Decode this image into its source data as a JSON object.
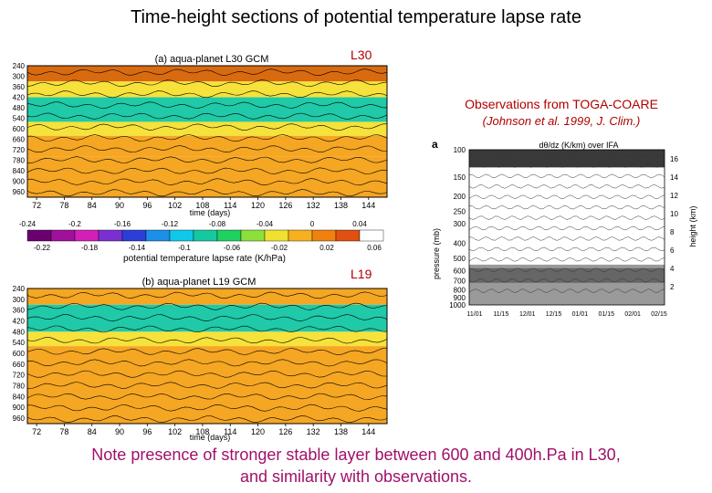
{
  "page": {
    "title": "Time-height sections of potential temperature lapse rate",
    "label_l30": "L30",
    "label_l19": "L19",
    "obs_title": "Observations from TOGA-COARE",
    "obs_subtitle": "(Johnson et al. 1999, J. Clim.)",
    "note_line1": "Note presence of stronger stable layer between 600 and 400h.Pa in L30,",
    "note_line2": "and similarity with observations."
  },
  "colors": {
    "deep_stable": "#d96a10",
    "stable": "#f5a623",
    "moderate": "#f6e23a",
    "weak": "#fff36a",
    "near_neutral": "#20c9a8",
    "neutral_dark": "#16a0a0"
  },
  "chart_data": [
    {
      "type": "heatmap",
      "title": "(a) aqua-planet L30 GCM",
      "xlabel": "time (days)",
      "x_ticks": [
        72,
        78,
        84,
        90,
        96,
        102,
        108,
        114,
        120,
        126,
        132,
        138,
        144
      ],
      "xlim": [
        70,
        148
      ],
      "y_ticks": [
        240,
        300,
        360,
        420,
        480,
        540,
        600,
        660,
        720,
        780,
        840,
        900,
        960
      ],
      "ylim": [
        240,
        990
      ],
      "bands": [
        {
          "from": 240,
          "to": 330,
          "value": -0.1
        },
        {
          "from": 330,
          "to": 420,
          "value": -0.04
        },
        {
          "from": 420,
          "to": 560,
          "value": -0.01
        },
        {
          "from": 560,
          "to": 640,
          "value": -0.04
        },
        {
          "from": 640,
          "to": 760,
          "value": -0.05
        },
        {
          "from": 760,
          "to": 990,
          "value": -0.06
        }
      ]
    },
    {
      "type": "colorbar",
      "title": "potential temperature lapse rate (K/hPa)",
      "upper_ticks": [
        "-0.24",
        "-0.2",
        "-0.16",
        "-0.12",
        "-0.08",
        "-0.04",
        "0",
        "0.04"
      ],
      "lower_ticks": [
        "-0.22",
        "-0.18",
        "-0.14",
        "-0.1",
        "-0.06",
        "-0.02",
        "0.02",
        "0.06"
      ],
      "colors": [
        "#6a0070",
        "#a0109a",
        "#d31fb8",
        "#7a2fd0",
        "#2b3fd8",
        "#1c8fe8",
        "#10c8e8",
        "#16c8a0",
        "#20d060",
        "#8be03a",
        "#f0e030",
        "#f6b020",
        "#f08010",
        "#e05010",
        "#ffffff"
      ]
    },
    {
      "type": "heatmap",
      "title": "(b) aqua-planet L19 GCM",
      "xlabel": "time (days)",
      "x_ticks": [
        72,
        78,
        84,
        90,
        96,
        102,
        108,
        114,
        120,
        126,
        132,
        138,
        144
      ],
      "xlim": [
        70,
        148
      ],
      "y_ticks": [
        240,
        300,
        360,
        420,
        480,
        540,
        600,
        660,
        720,
        780,
        840,
        900,
        960
      ],
      "ylim": [
        240,
        990
      ],
      "bands": [
        {
          "from": 240,
          "to": 330,
          "value": -0.05
        },
        {
          "from": 330,
          "to": 480,
          "value": -0.01
        },
        {
          "from": 480,
          "to": 560,
          "value": -0.04
        },
        {
          "from": 560,
          "to": 800,
          "value": -0.05
        },
        {
          "from": 800,
          "to": 990,
          "value": -0.06
        }
      ]
    },
    {
      "type": "heatmap",
      "panel_letter": "a",
      "title": "dθ/dz (K/km) over IFA",
      "ylabel": "pressure (mb)",
      "y2label": "height (km)",
      "y_ticks": [
        100,
        150,
        200,
        250,
        300,
        400,
        500,
        600,
        700,
        800,
        900,
        1000
      ],
      "y2_ticks": [
        2,
        4,
        6,
        8,
        10,
        12,
        14,
        16
      ],
      "x_ticks": [
        "11/01",
        "11/15",
        "12/01",
        "12/15",
        "01/01",
        "01/15",
        "02/01",
        "02/15"
      ]
    }
  ]
}
